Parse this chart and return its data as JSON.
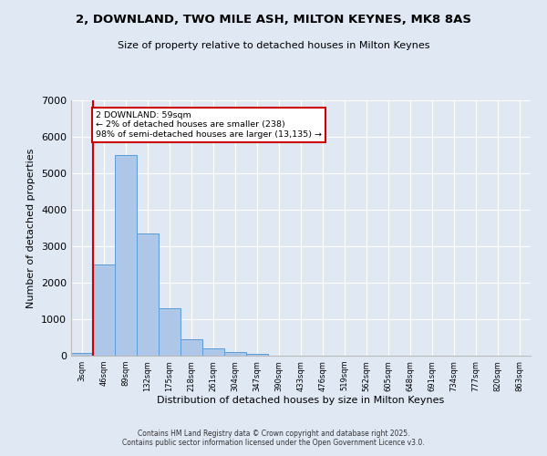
{
  "title1": "2, DOWNLAND, TWO MILE ASH, MILTON KEYNES, MK8 8AS",
  "title2": "Size of property relative to detached houses in Milton Keynes",
  "xlabel": "Distribution of detached houses by size in Milton Keynes",
  "ylabel": "Number of detached properties",
  "categories": [
    "3sqm",
    "46sqm",
    "89sqm",
    "132sqm",
    "175sqm",
    "218sqm",
    "261sqm",
    "304sqm",
    "347sqm",
    "390sqm",
    "433sqm",
    "476sqm",
    "519sqm",
    "562sqm",
    "605sqm",
    "648sqm",
    "691sqm",
    "734sqm",
    "777sqm",
    "820sqm",
    "863sqm"
  ],
  "values": [
    75,
    2500,
    5500,
    3350,
    1300,
    450,
    200,
    100,
    50,
    0,
    0,
    0,
    0,
    0,
    0,
    0,
    0,
    0,
    0,
    0,
    0
  ],
  "bar_color": "#aec6e8",
  "bar_edge_color": "#5b9bd5",
  "background_color": "#e0e8f4",
  "grid_color": "#ffffff",
  "vline_color": "#cc0000",
  "annotation_text": "2 DOWNLAND: 59sqm\n← 2% of detached houses are smaller (238)\n98% of semi-detached houses are larger (13,135) →",
  "annotation_box_color": "#cc0000",
  "ylim": [
    0,
    7000
  ],
  "yticks": [
    0,
    1000,
    2000,
    3000,
    4000,
    5000,
    6000,
    7000
  ],
  "figsize": [
    6.0,
    5.0
  ],
  "dpi": 100,
  "footer1": "Contains HM Land Registry data © Crown copyright and database right 2025.",
  "footer2": "Contains public sector information licensed under the Open Government Licence v3.0."
}
